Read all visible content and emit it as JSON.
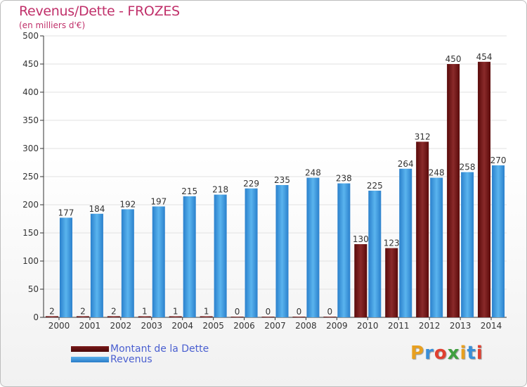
{
  "chart_data": {
    "type": "bar",
    "title": "Revenus/Dette - FROZES",
    "subtitle": "(en milliers d'€)",
    "categories": [
      "2000",
      "2001",
      "2002",
      "2003",
      "2004",
      "2005",
      "2006",
      "2007",
      "2008",
      "2009",
      "2010",
      "2011",
      "2012",
      "2013",
      "2014"
    ],
    "series": [
      {
        "name": "Montant de la Dette",
        "color": "#7a1a1a",
        "values": [
          2,
          2,
          2,
          1,
          1,
          1,
          0,
          0,
          0,
          0,
          130,
          123,
          312,
          450,
          454
        ]
      },
      {
        "name": "Revenus",
        "color": "#3a9be0",
        "values": [
          177,
          184,
          192,
          197,
          215,
          218,
          229,
          235,
          248,
          238,
          225,
          264,
          248,
          258,
          270
        ]
      }
    ],
    "ylim": [
      0,
      500
    ],
    "yticks": [
      0,
      50,
      100,
      150,
      200,
      250,
      300,
      350,
      400,
      450,
      500
    ],
    "grid": true,
    "legend_position": "bottom-left"
  },
  "logo_text": "Proxiti",
  "logo_colors": [
    "#e8a020",
    "#3a8fd8",
    "#e04030",
    "#40a040",
    "#e8a020",
    "#3a8fd8",
    "#e04030"
  ]
}
